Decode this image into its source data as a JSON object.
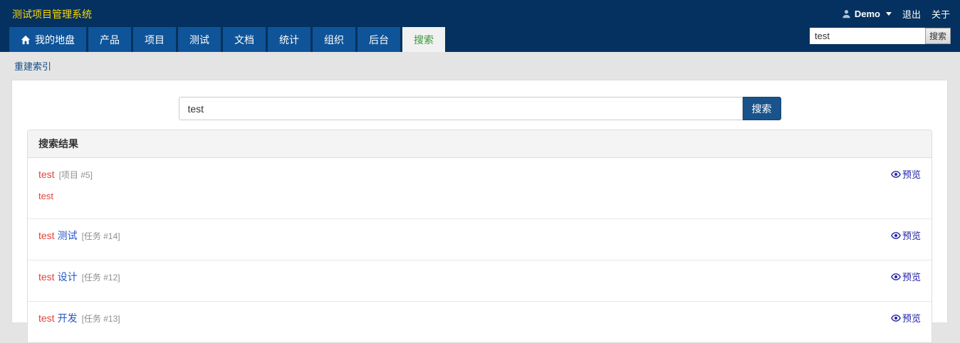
{
  "app": {
    "title": "测试项目管理系统"
  },
  "topbar": {
    "user_name": "Demo",
    "logout_label": "退出",
    "about_label": "关于",
    "search_value": "test",
    "search_button_label": "搜索"
  },
  "nav": {
    "tabs": [
      {
        "label": "我的地盘",
        "icon": "home-icon",
        "active": false
      },
      {
        "label": "产品",
        "icon": "",
        "active": false
      },
      {
        "label": "项目",
        "icon": "",
        "active": false
      },
      {
        "label": "测试",
        "icon": "",
        "active": false
      },
      {
        "label": "文档",
        "icon": "",
        "active": false
      },
      {
        "label": "统计",
        "icon": "",
        "active": false
      },
      {
        "label": "组织",
        "icon": "",
        "active": false
      },
      {
        "label": "后台",
        "icon": "",
        "active": false
      },
      {
        "label": "搜索",
        "icon": "",
        "active": true
      }
    ]
  },
  "breadcrumb": {
    "rebuild_index_label": "重建索引"
  },
  "search": {
    "value": "test",
    "button_label": "搜索"
  },
  "results": {
    "header": "搜索结果",
    "preview_label": "预览",
    "items": [
      {
        "highlight": "test",
        "rest": "",
        "tag": "[项目 #5]",
        "summary": "test"
      },
      {
        "highlight": "test",
        "rest": "测试",
        "tag": "[任务 #14]",
        "summary": ""
      },
      {
        "highlight": "test",
        "rest": "设计",
        "tag": "[任务 #12]",
        "summary": ""
      },
      {
        "highlight": "test",
        "rest": "开发",
        "tag": "[任务 #13]",
        "summary": ""
      }
    ]
  },
  "icons": {
    "user": "user-icon",
    "caret": "caret-down-icon",
    "home": "home-icon",
    "preview": "eye-icon"
  },
  "colors": {
    "header_bg": "#04315F",
    "tab_bg": "#0F5499",
    "active_tab_bg": "#F1F1F1",
    "active_tab_text": "#389738",
    "title_yellow": "#FFD700",
    "page_bg": "#E4E4E4",
    "navy_link": "#134C86",
    "button_blue": "#1A538C",
    "box_header_bg": "#F4F4F4",
    "highlight_red": "#E0433E",
    "link_blue": "#2657C5",
    "preview_blue": "#2121A8"
  }
}
